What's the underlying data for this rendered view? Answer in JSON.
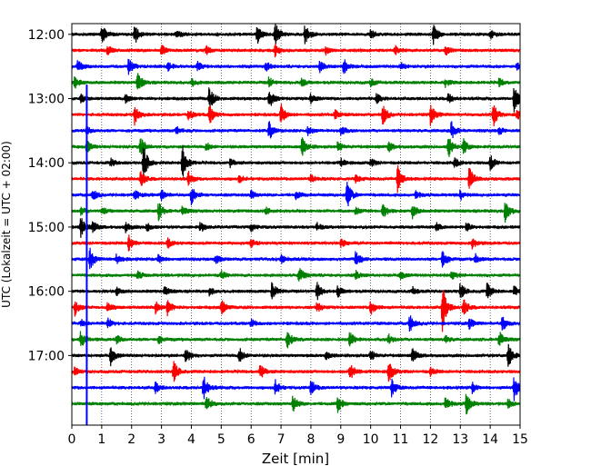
{
  "chart_data": {
    "type": "line",
    "title": "",
    "xlabel": "Zeit  [min]",
    "ylabel": "UTC (Lokalzeit = UTC + 02:00)",
    "xlim": [
      0,
      15
    ],
    "xticks": [
      0,
      1,
      2,
      3,
      4,
      5,
      6,
      7,
      8,
      9,
      10,
      11,
      12,
      13,
      14,
      15
    ],
    "xtick_labels": [
      "0",
      "1",
      "2",
      "3",
      "4",
      "5",
      "6",
      "7",
      "8",
      "9",
      "10",
      "11",
      "12",
      "13",
      "14",
      "15"
    ],
    "ylim_time": [
      "11:50",
      "18:05"
    ],
    "yticks": [
      "12:00",
      "13:00",
      "14:00",
      "15:00",
      "16:00",
      "17:00"
    ],
    "trace_interval_minutes": 15,
    "trace_colors": [
      "#000000",
      "#ff0000",
      "#0000ff",
      "#008000"
    ],
    "vertical_grid": "dotted",
    "marker_line": {
      "x": 0.5,
      "color": "#0000ff"
    },
    "traces": [
      {
        "start": "12:00",
        "color": "#000000",
        "events": [
          [
            1.0,
            1.0
          ],
          [
            2.1,
            1.0
          ],
          [
            3.5,
            0.4
          ],
          [
            6.2,
            1.0
          ],
          [
            6.8,
            1.3
          ],
          [
            7.8,
            1.0
          ],
          [
            10.0,
            0.4
          ],
          [
            12.1,
            1.0
          ],
          [
            14.0,
            0.5
          ]
        ]
      },
      {
        "start": "12:15",
        "color": "#ff0000",
        "events": [
          [
            1.2,
            0.5
          ],
          [
            3.0,
            0.5
          ],
          [
            4.5,
            0.4
          ],
          [
            6.8,
            0.6
          ],
          [
            8.5,
            0.4
          ],
          [
            10.8,
            0.5
          ],
          [
            12.5,
            0.5
          ]
        ]
      },
      {
        "start": "12:30",
        "color": "#0000ff",
        "events": [
          [
            0.2,
            0.6
          ],
          [
            1.9,
            0.8
          ],
          [
            3.2,
            0.5
          ],
          [
            4.2,
            0.5
          ],
          [
            6.5,
            0.5
          ],
          [
            8.3,
            0.5
          ],
          [
            9.1,
            0.9
          ],
          [
            11.0,
            0.4
          ],
          [
            14.9,
            0.5
          ]
        ]
      },
      {
        "start": "12:45",
        "color": "#008000",
        "events": [
          [
            0.1,
            0.6
          ],
          [
            2.2,
            1.0
          ],
          [
            4.0,
            0.4
          ],
          [
            6.6,
            0.5
          ],
          [
            7.7,
            0.4
          ],
          [
            10.0,
            0.4
          ],
          [
            12.5,
            0.4
          ],
          [
            14.3,
            0.4
          ]
        ]
      },
      {
        "start": "13:00",
        "color": "#000000",
        "events": [
          [
            0.3,
            0.4
          ],
          [
            1.8,
            0.5
          ],
          [
            4.6,
            1.2
          ],
          [
            6.6,
            1.1
          ],
          [
            8.0,
            0.5
          ],
          [
            10.2,
            0.5
          ],
          [
            12.6,
            0.5
          ],
          [
            14.8,
            1.5
          ]
        ]
      },
      {
        "start": "13:15",
        "color": "#ff0000",
        "events": [
          [
            2.1,
            1.0
          ],
          [
            3.9,
            0.6
          ],
          [
            4.6,
            1.0
          ],
          [
            7.0,
            1.1
          ],
          [
            8.8,
            0.5
          ],
          [
            10.4,
            1.1
          ],
          [
            12.0,
            1.0
          ],
          [
            14.1,
            1.3
          ],
          [
            14.9,
            0.5
          ]
        ]
      },
      {
        "start": "13:30",
        "color": "#0000ff",
        "events": [
          [
            0.5,
            0.4
          ],
          [
            3.5,
            0.4
          ],
          [
            6.6,
            0.9
          ],
          [
            7.9,
            0.4
          ],
          [
            9.0,
            0.5
          ],
          [
            12.7,
            0.9
          ],
          [
            14.3,
            0.4
          ]
        ]
      },
      {
        "start": "13:45",
        "color": "#008000",
        "events": [
          [
            0.5,
            0.7
          ],
          [
            2.3,
            1.0
          ],
          [
            4.5,
            0.4
          ],
          [
            7.7,
            0.9
          ],
          [
            8.9,
            0.5
          ],
          [
            10.6,
            0.5
          ],
          [
            12.6,
            1.2
          ],
          [
            13.1,
            0.8
          ]
        ]
      },
      {
        "start": "14:00",
        "color": "#000000",
        "events": [
          [
            1.3,
            0.4
          ],
          [
            2.4,
            1.8
          ],
          [
            3.7,
            1.8
          ],
          [
            5.3,
            0.4
          ],
          [
            9.0,
            0.4
          ],
          [
            10.0,
            0.4
          ],
          [
            12.8,
            0.5
          ],
          [
            14.0,
            0.8
          ]
        ]
      },
      {
        "start": "14:15",
        "color": "#ff0000",
        "events": [
          [
            2.3,
            0.9
          ],
          [
            3.9,
            0.7
          ],
          [
            5.6,
            0.4
          ],
          [
            8.0,
            0.4
          ],
          [
            9.5,
            0.4
          ],
          [
            10.9,
            1.4
          ],
          [
            13.3,
            1.2
          ]
        ]
      },
      {
        "start": "14:30",
        "color": "#0000ff",
        "events": [
          [
            0.7,
            0.6
          ],
          [
            2.1,
            0.5
          ],
          [
            3.0,
            0.5
          ],
          [
            4.0,
            0.9
          ],
          [
            6.0,
            0.5
          ],
          [
            7.5,
            0.4
          ],
          [
            9.2,
            1.5
          ],
          [
            11.5,
            0.4
          ],
          [
            13.0,
            0.5
          ]
        ]
      },
      {
        "start": "14:45",
        "color": "#008000",
        "events": [
          [
            0.3,
            0.4
          ],
          [
            1.0,
            0.4
          ],
          [
            2.9,
            0.9
          ],
          [
            3.7,
            0.5
          ],
          [
            6.5,
            0.4
          ],
          [
            9.5,
            0.4
          ],
          [
            10.4,
            0.8
          ],
          [
            11.4,
            0.7
          ],
          [
            14.5,
            1.3
          ]
        ]
      },
      {
        "start": "15:00",
        "color": "#000000",
        "events": [
          [
            0.3,
            1.0
          ],
          [
            0.7,
            0.6
          ],
          [
            1.8,
            0.5
          ],
          [
            2.5,
            0.5
          ],
          [
            4.3,
            0.5
          ],
          [
            6.0,
            0.4
          ],
          [
            8.2,
            0.4
          ],
          [
            12.2,
            0.4
          ],
          [
            13.2,
            0.5
          ]
        ]
      },
      {
        "start": "15:15",
        "color": "#ff0000",
        "events": [
          [
            1.9,
            0.8
          ],
          [
            3.2,
            0.5
          ],
          [
            6.0,
            0.4
          ],
          [
            9.0,
            0.4
          ],
          [
            13.4,
            0.5
          ]
        ]
      },
      {
        "start": "15:30",
        "color": "#0000ff",
        "events": [
          [
            0.6,
            1.2
          ],
          [
            1.5,
            0.5
          ],
          [
            2.9,
            0.5
          ],
          [
            4.8,
            0.5
          ],
          [
            7.0,
            0.4
          ],
          [
            9.5,
            0.9
          ],
          [
            12.4,
            1.0
          ],
          [
            13.5,
            0.5
          ]
        ]
      },
      {
        "start": "15:45",
        "color": "#008000",
        "events": [
          [
            2.2,
            0.4
          ],
          [
            5.0,
            0.4
          ],
          [
            7.6,
            0.9
          ],
          [
            9.5,
            0.4
          ],
          [
            11.0,
            0.4
          ],
          [
            12.7,
            0.5
          ]
        ]
      },
      {
        "start": "16:00",
        "color": "#000000",
        "events": [
          [
            1.5,
            0.4
          ],
          [
            3.1,
            0.5
          ],
          [
            4.6,
            0.4
          ],
          [
            6.7,
            0.9
          ],
          [
            8.2,
            0.9
          ],
          [
            8.9,
            0.6
          ],
          [
            11.4,
            0.4
          ],
          [
            13.0,
            0.9
          ],
          [
            13.9,
            0.9
          ],
          [
            14.8,
            0.5
          ]
        ]
      },
      {
        "start": "16:15",
        "color": "#ff0000",
        "events": [
          [
            0.1,
            0.8
          ],
          [
            1.2,
            0.5
          ],
          [
            2.8,
            0.6
          ],
          [
            3.2,
            0.8
          ],
          [
            5.0,
            0.8
          ],
          [
            8.2,
            0.5
          ],
          [
            10.0,
            0.8
          ],
          [
            12.4,
            2.5
          ],
          [
            13.1,
            0.9
          ]
        ]
      },
      {
        "start": "16:30",
        "color": "#0000ff",
        "events": [
          [
            0.3,
            0.4
          ],
          [
            1.2,
            0.5
          ],
          [
            6.0,
            0.4
          ],
          [
            11.3,
            0.9
          ],
          [
            13.3,
            0.5
          ],
          [
            14.4,
            0.8
          ]
        ]
      },
      {
        "start": "16:45",
        "color": "#008000",
        "events": [
          [
            0.3,
            0.9
          ],
          [
            1.5,
            0.4
          ],
          [
            2.9,
            0.4
          ],
          [
            7.2,
            1.0
          ],
          [
            9.3,
            0.9
          ],
          [
            10.6,
            0.5
          ],
          [
            12.5,
            0.4
          ],
          [
            14.3,
            0.9
          ]
        ]
      },
      {
        "start": "17:00",
        "color": "#000000",
        "events": [
          [
            1.3,
            0.9
          ],
          [
            3.8,
            0.9
          ],
          [
            5.6,
            0.8
          ],
          [
            8.5,
            0.4
          ],
          [
            10.0,
            0.5
          ],
          [
            11.4,
            0.8
          ],
          [
            14.6,
            1.3
          ]
        ]
      },
      {
        "start": "17:15",
        "color": "#ff0000",
        "events": [
          [
            0.1,
            0.4
          ],
          [
            3.4,
            1.2
          ],
          [
            6.3,
            0.8
          ],
          [
            9.3,
            1.0
          ],
          [
            10.6,
            1.2
          ],
          [
            12.0,
            0.4
          ]
        ]
      },
      {
        "start": "17:30",
        "color": "#0000ff",
        "events": [
          [
            2.8,
            0.6
          ],
          [
            4.4,
            1.3
          ],
          [
            6.8,
            0.8
          ],
          [
            8.0,
            0.8
          ],
          [
            10.7,
            0.9
          ],
          [
            13.4,
            0.5
          ],
          [
            14.8,
            1.3
          ]
        ]
      },
      {
        "start": "17:45",
        "color": "#008000",
        "events": [
          [
            4.5,
            0.9
          ],
          [
            7.4,
            0.9
          ],
          [
            8.9,
            0.8
          ],
          [
            12.5,
            0.7
          ],
          [
            13.2,
            1.2
          ],
          [
            14.6,
            0.5
          ]
        ]
      }
    ]
  }
}
